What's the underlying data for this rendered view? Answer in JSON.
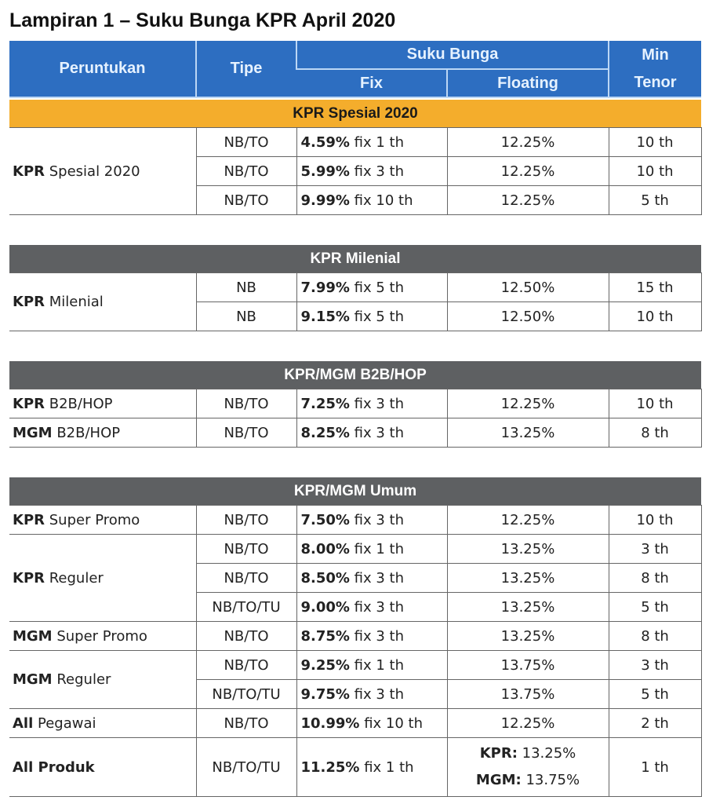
{
  "title": "Lampiran 1 – Suku Bunga KPR April 2020",
  "header": {
    "peruntukan": "Peruntukan",
    "tipe": "Tipe",
    "suku_bunga": "Suku Bunga",
    "fix": "Fix",
    "floating": "Floating",
    "min_tenor_1": "Min",
    "min_tenor_2": "Tenor"
  },
  "colors": {
    "header_blue": "#2d6ec1",
    "section_orange": "#f4ad2c",
    "section_gray": "#5e6062"
  },
  "sections": [
    {
      "label": "KPR Spesial 2020",
      "style": "orange",
      "rows": [
        {
          "per": {
            "bold": "KPR",
            "rest": " Spesial 2020",
            "rowspan": 3
          },
          "tipe": "NB/TO",
          "fix": {
            "bold": "4.59%",
            "rest": " fix 1 th"
          },
          "floating": [
            {
              "bold": "",
              "rest": "12.25%"
            }
          ],
          "tenor": "10 th"
        },
        {
          "tipe": "NB/TO",
          "fix": {
            "bold": "5.99%",
            "rest": " fix 3 th"
          },
          "floating": [
            {
              "bold": "",
              "rest": "12.25%"
            }
          ],
          "tenor": "10 th"
        },
        {
          "tipe": "NB/TO",
          "fix": {
            "bold": "9.99%",
            "rest": " fix 10 th"
          },
          "floating": [
            {
              "bold": "",
              "rest": "12.25%"
            }
          ],
          "tenor": "5 th"
        }
      ]
    },
    {
      "label": "KPR Milenial",
      "style": "gray",
      "rows": [
        {
          "per": {
            "bold": "KPR",
            "rest": " Milenial",
            "rowspan": 2
          },
          "tipe": "NB",
          "fix": {
            "bold": "7.99%",
            "rest": " fix 5 th"
          },
          "floating": [
            {
              "bold": "",
              "rest": "12.50%"
            }
          ],
          "tenor": "15 th"
        },
        {
          "tipe": "NB",
          "fix": {
            "bold": "9.15%",
            "rest": " fix 5 th"
          },
          "floating": [
            {
              "bold": "",
              "rest": "12.50%"
            }
          ],
          "tenor": "10 th"
        }
      ]
    },
    {
      "label": "KPR/MGM B2B/HOP",
      "style": "gray",
      "rows": [
        {
          "per": {
            "bold": "KPR",
            "rest": " B2B/HOP",
            "rowspan": 1
          },
          "tipe": "NB/TO",
          "fix": {
            "bold": "7.25%",
            "rest": " fix 3 th"
          },
          "floating": [
            {
              "bold": "",
              "rest": "12.25%"
            }
          ],
          "tenor": "10 th"
        },
        {
          "per": {
            "bold": "MGM",
            "rest": " B2B/HOP",
            "rowspan": 1
          },
          "tipe": "NB/TO",
          "fix": {
            "bold": "8.25%",
            "rest": " fix 3 th"
          },
          "floating": [
            {
              "bold": "",
              "rest": "13.25%"
            }
          ],
          "tenor": "8 th"
        }
      ]
    },
    {
      "label": "KPR/MGM Umum",
      "style": "gray",
      "rows": [
        {
          "per": {
            "bold": "KPR",
            "rest": " Super Promo",
            "rowspan": 1
          },
          "tipe": "NB/TO",
          "fix": {
            "bold": "7.50%",
            "rest": " fix 3 th"
          },
          "floating": [
            {
              "bold": "",
              "rest": "12.25%"
            }
          ],
          "tenor": "10 th"
        },
        {
          "per": {
            "bold": "KPR",
            "rest": " Reguler",
            "rowspan": 3
          },
          "tipe": "NB/TO",
          "fix": {
            "bold": "8.00%",
            "rest": " fix 1 th"
          },
          "floating": [
            {
              "bold": "",
              "rest": "13.25%"
            }
          ],
          "tenor": "3 th"
        },
        {
          "tipe": "NB/TO",
          "fix": {
            "bold": "8.50%",
            "rest": " fix 3 th"
          },
          "floating": [
            {
              "bold": "",
              "rest": "13.25%"
            }
          ],
          "tenor": "8 th"
        },
        {
          "tipe": "NB/TO/TU",
          "fix": {
            "bold": "9.00%",
            "rest": " fix 3 th"
          },
          "floating": [
            {
              "bold": "",
              "rest": "13.25%"
            }
          ],
          "tenor": "5 th"
        },
        {
          "per": {
            "bold": "MGM",
            "rest": " Super Promo",
            "rowspan": 1
          },
          "tipe": "NB/TO",
          "fix": {
            "bold": "8.75%",
            "rest": " fix 3 th"
          },
          "floating": [
            {
              "bold": "",
              "rest": "13.25%"
            }
          ],
          "tenor": "8 th"
        },
        {
          "per": {
            "bold": "MGM",
            "rest": " Reguler",
            "rowspan": 2
          },
          "tipe": "NB/TO",
          "fix": {
            "bold": "9.25%",
            "rest": " fix 1 th"
          },
          "floating": [
            {
              "bold": "",
              "rest": "13.75%"
            }
          ],
          "tenor": "3 th"
        },
        {
          "tipe": "NB/TO/TU",
          "fix": {
            "bold": "9.75%",
            "rest": " fix 3 th"
          },
          "floating": [
            {
              "bold": "",
              "rest": "13.75%"
            }
          ],
          "tenor": "5 th"
        },
        {
          "per": {
            "bold": "All",
            "rest": " Pegawai",
            "rowspan": 1
          },
          "tipe": "NB/TO",
          "fix": {
            "bold": "10.99%",
            "rest": " fix 10 th"
          },
          "floating": [
            {
              "bold": "",
              "rest": "12.25%"
            }
          ],
          "tenor": "2 th"
        },
        {
          "per": {
            "bold": "All Produk",
            "rest": "",
            "rowspan": 1
          },
          "tipe": "NB/TO/TU",
          "fix": {
            "bold": "11.25%",
            "rest": " fix 1 th"
          },
          "floating": [
            {
              "bold": "KPR:",
              "rest": " 13.25%"
            },
            {
              "bold": "MGM:",
              "rest": " 13.75%"
            }
          ],
          "tenor": "1 th",
          "tall": true
        }
      ]
    }
  ]
}
